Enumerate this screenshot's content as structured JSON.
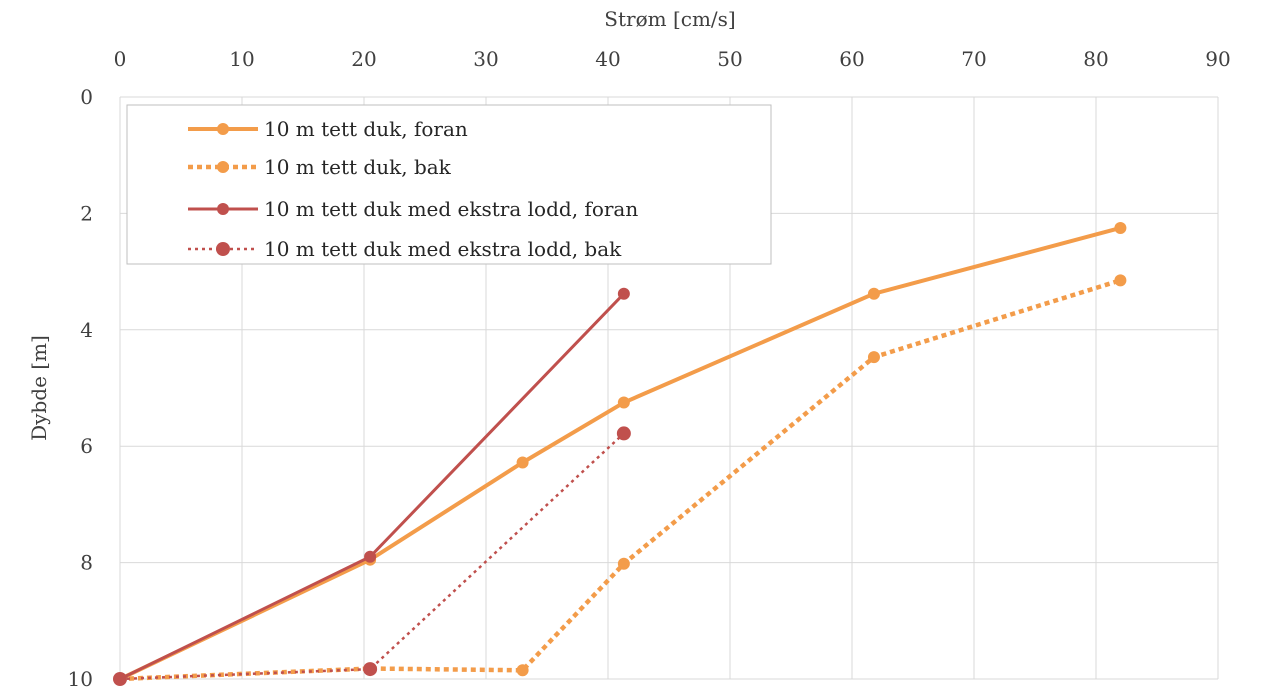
{
  "chart_data": {
    "type": "line",
    "xlabel": "Strøm [cm/s]",
    "ylabel": "Dybde [m]",
    "xlim": [
      0,
      90
    ],
    "ylim": [
      0,
      10
    ],
    "y_reversed": true,
    "x_axis_position": "top",
    "x_ticks": [
      0,
      10,
      20,
      30,
      40,
      50,
      60,
      70,
      80,
      90
    ],
    "y_ticks": [
      0,
      2,
      4,
      6,
      8,
      10
    ],
    "grid": true,
    "legend_position": "top-left",
    "series": [
      {
        "name": "10 m tett duk, foran",
        "color": "#f39c4a",
        "dash": "solid",
        "points": [
          {
            "x": 0,
            "y": 10
          },
          {
            "x": 20.5,
            "y": 7.95
          },
          {
            "x": 33,
            "y": 6.28
          },
          {
            "x": 41.3,
            "y": 5.25
          },
          {
            "x": 61.8,
            "y": 3.38
          },
          {
            "x": 82,
            "y": 2.25
          }
        ]
      },
      {
        "name": "10 m tett duk, bak",
        "color": "#f39c4a",
        "dash": "dotted-bold",
        "points": [
          {
            "x": 0,
            "y": 10
          },
          {
            "x": 20.5,
            "y": 9.82
          },
          {
            "x": 33,
            "y": 9.85
          },
          {
            "x": 41.3,
            "y": 8.02
          },
          {
            "x": 61.8,
            "y": 4.47
          },
          {
            "x": 82,
            "y": 3.15
          }
        ]
      },
      {
        "name": "10 m tett duk med ekstra lodd, foran",
        "color": "#c0504d",
        "dash": "solid-thin",
        "points": [
          {
            "x": 0,
            "y": 10
          },
          {
            "x": 20.5,
            "y": 7.9
          },
          {
            "x": 41.3,
            "y": 3.38
          }
        ]
      },
      {
        "name": "10 m tett duk med ekstra lodd, bak",
        "color": "#c0504d",
        "dash": "dotted-thin",
        "points": [
          {
            "x": 0,
            "y": 10
          },
          {
            "x": 20.5,
            "y": 9.83
          },
          {
            "x": 41.3,
            "y": 5.78
          }
        ]
      }
    ]
  }
}
